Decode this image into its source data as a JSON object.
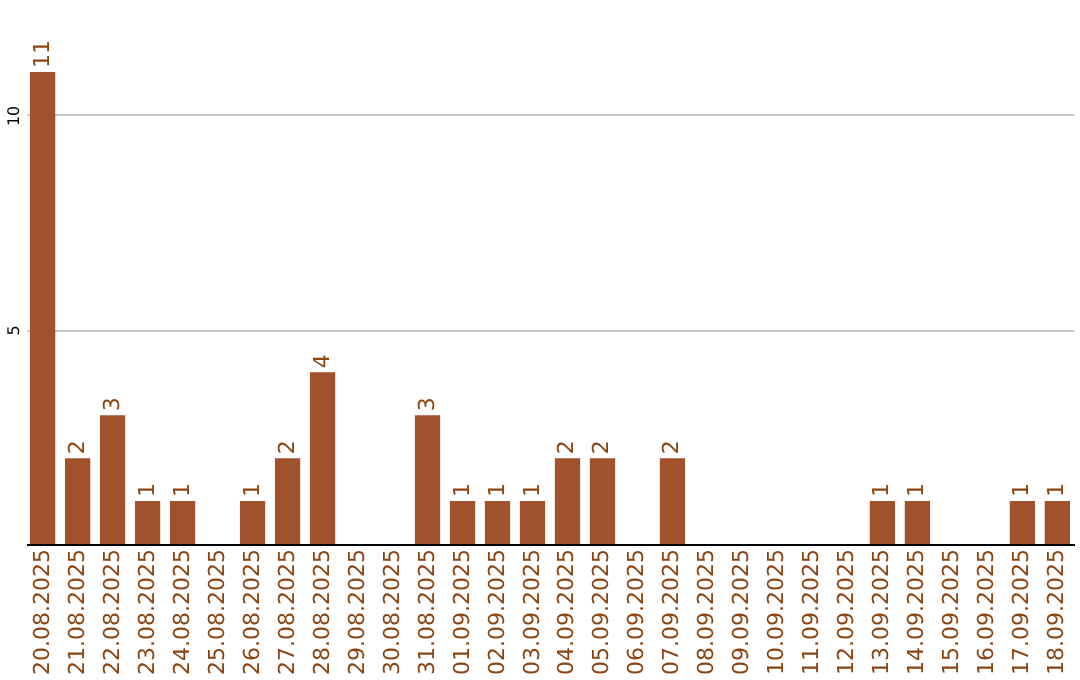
{
  "chart_data": {
    "type": "bar",
    "categories": [
      "20.08.2025",
      "21.08.2025",
      "22.08.2025",
      "23.08.2025",
      "24.08.2025",
      "25.08.2025",
      "26.08.2025",
      "27.08.2025",
      "28.08.2025",
      "29.08.2025",
      "30.08.2025",
      "31.08.2025",
      "01.09.2025",
      "02.09.2025",
      "03.09.2025",
      "04.09.2025",
      "05.09.2025",
      "06.09.2025",
      "07.09.2025",
      "08.09.2025",
      "09.09.2025",
      "10.09.2025",
      "11.09.2025",
      "12.09.2025",
      "13.09.2025",
      "14.09.2025",
      "15.09.2025",
      "16.09.2025",
      "17.09.2025",
      "18.09.2025"
    ],
    "values": [
      11,
      2,
      3,
      1,
      1,
      0,
      1,
      2,
      4,
      0,
      0,
      3,
      1,
      1,
      1,
      2,
      2,
      0,
      2,
      0,
      0,
      0,
      0,
      0,
      1,
      1,
      0,
      0,
      1,
      1
    ],
    "value_labels": [
      "11",
      "2",
      "3",
      "1",
      "1",
      null,
      "1",
      "2",
      "4",
      null,
      null,
      "3",
      "1",
      "1",
      "1",
      "2",
      "2",
      null,
      "2",
      null,
      null,
      null,
      null,
      null,
      "1",
      "1",
      null,
      null,
      "1",
      "1"
    ],
    "color": "#a0522d",
    "ylim": [
      0,
      11
    ],
    "yticks": [
      5,
      10
    ],
    "grid": "y"
  }
}
